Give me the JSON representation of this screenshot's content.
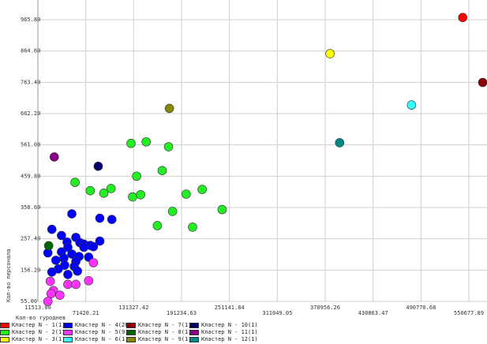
{
  "chart_data": {
    "type": "scatter",
    "xlabel": "Кол-во туроднев",
    "ylabel": "Кол-во персонала",
    "xlim": [
      11513.0,
      580000
    ],
    "ylim": [
      55.0,
      1000
    ],
    "x_ticks": [
      "11513.00",
      "71420.21",
      "131327.42",
      "191234.63",
      "251141.84",
      "311049.05",
      "370956.26",
      "430863.47",
      "490770.68",
      "550677.89"
    ],
    "y_ticks": [
      "55.00",
      "156.20",
      "257.40",
      "358.60",
      "459.80",
      "561.00",
      "662.20",
      "763.40",
      "864.60",
      "965.80"
    ],
    "grid": true,
    "legend_position": "bottom",
    "series": [
      {
        "name": "Кластер N - 1(1)",
        "color": "#ff0000",
        "points": [
          [
            544000,
            973
          ]
        ]
      },
      {
        "name": "Кластер N - 2(17)",
        "color": "#22ee22",
        "points": [
          [
            129000,
            566
          ],
          [
            148000,
            571
          ],
          [
            176000,
            555
          ],
          [
            136000,
            460
          ],
          [
            168000,
            478
          ],
          [
            59000,
            440
          ],
          [
            104000,
            420
          ],
          [
            78000,
            413
          ],
          [
            95000,
            405
          ],
          [
            131000,
            393
          ],
          [
            141000,
            400
          ],
          [
            198000,
            402
          ],
          [
            218000,
            417
          ],
          [
            181000,
            346
          ],
          [
            243000,
            352
          ],
          [
            162000,
            300
          ],
          [
            206000,
            295
          ]
        ]
      },
      {
        "name": "Кластер N - 3(1)",
        "color": "#ffff00",
        "points": [
          [
            378000,
            856
          ]
        ]
      },
      {
        "name": "Кластер N - 4(28)",
        "color": "#0000ff",
        "points": [
          [
            25000,
            212
          ],
          [
            30000,
            288
          ],
          [
            55000,
            338
          ],
          [
            90000,
            324
          ],
          [
            105000,
            320
          ],
          [
            42000,
            268
          ],
          [
            60000,
            262
          ],
          [
            49000,
            247
          ],
          [
            65000,
            245
          ],
          [
            90000,
            250
          ],
          [
            70000,
            240
          ],
          [
            78000,
            236
          ],
          [
            50000,
            230
          ],
          [
            70000,
            230
          ],
          [
            82000,
            232
          ],
          [
            42000,
            215
          ],
          [
            55000,
            208
          ],
          [
            64000,
            200
          ],
          [
            76000,
            198
          ],
          [
            45000,
            195
          ],
          [
            35000,
            188
          ],
          [
            60000,
            184
          ],
          [
            46000,
            172
          ],
          [
            58000,
            168
          ],
          [
            38000,
            160
          ],
          [
            30000,
            150
          ],
          [
            62000,
            153
          ],
          [
            50000,
            142
          ]
        ]
      },
      {
        "name": "Кластер N - 5(9)",
        "color": "#ff33ff",
        "points": [
          [
            82000,
            180
          ],
          [
            28000,
            120
          ],
          [
            50000,
            110
          ],
          [
            60000,
            110
          ],
          [
            76000,
            122
          ],
          [
            32000,
            90
          ],
          [
            29000,
            80
          ],
          [
            40000,
            75
          ],
          [
            25000,
            55
          ]
        ]
      },
      {
        "name": "Кластер N - 6(1)",
        "color": "#33ffff",
        "points": [
          [
            480000,
            690
          ]
        ]
      },
      {
        "name": "Кластер N - 7(1)",
        "color": "#880000",
        "points": [
          [
            569000,
            763
          ]
        ]
      },
      {
        "name": "Кластер N - 8(1)",
        "color": "#006600",
        "points": [
          [
            26000,
            235
          ]
        ]
      },
      {
        "name": "Кластер N - 9(1)",
        "color": "#888800",
        "points": [
          [
            177000,
            679
          ]
        ]
      },
      {
        "name": "Кластер N - 10(1)",
        "color": "#000066",
        "points": [
          [
            88000,
            492
          ]
        ]
      },
      {
        "name": "Кластер N - 11(1)",
        "color": "#880088",
        "points": [
          [
            33000,
            522
          ]
        ]
      },
      {
        "name": "Кластер N - 12(1)",
        "color": "#008888",
        "points": [
          [
            390000,
            568
          ]
        ]
      }
    ]
  }
}
